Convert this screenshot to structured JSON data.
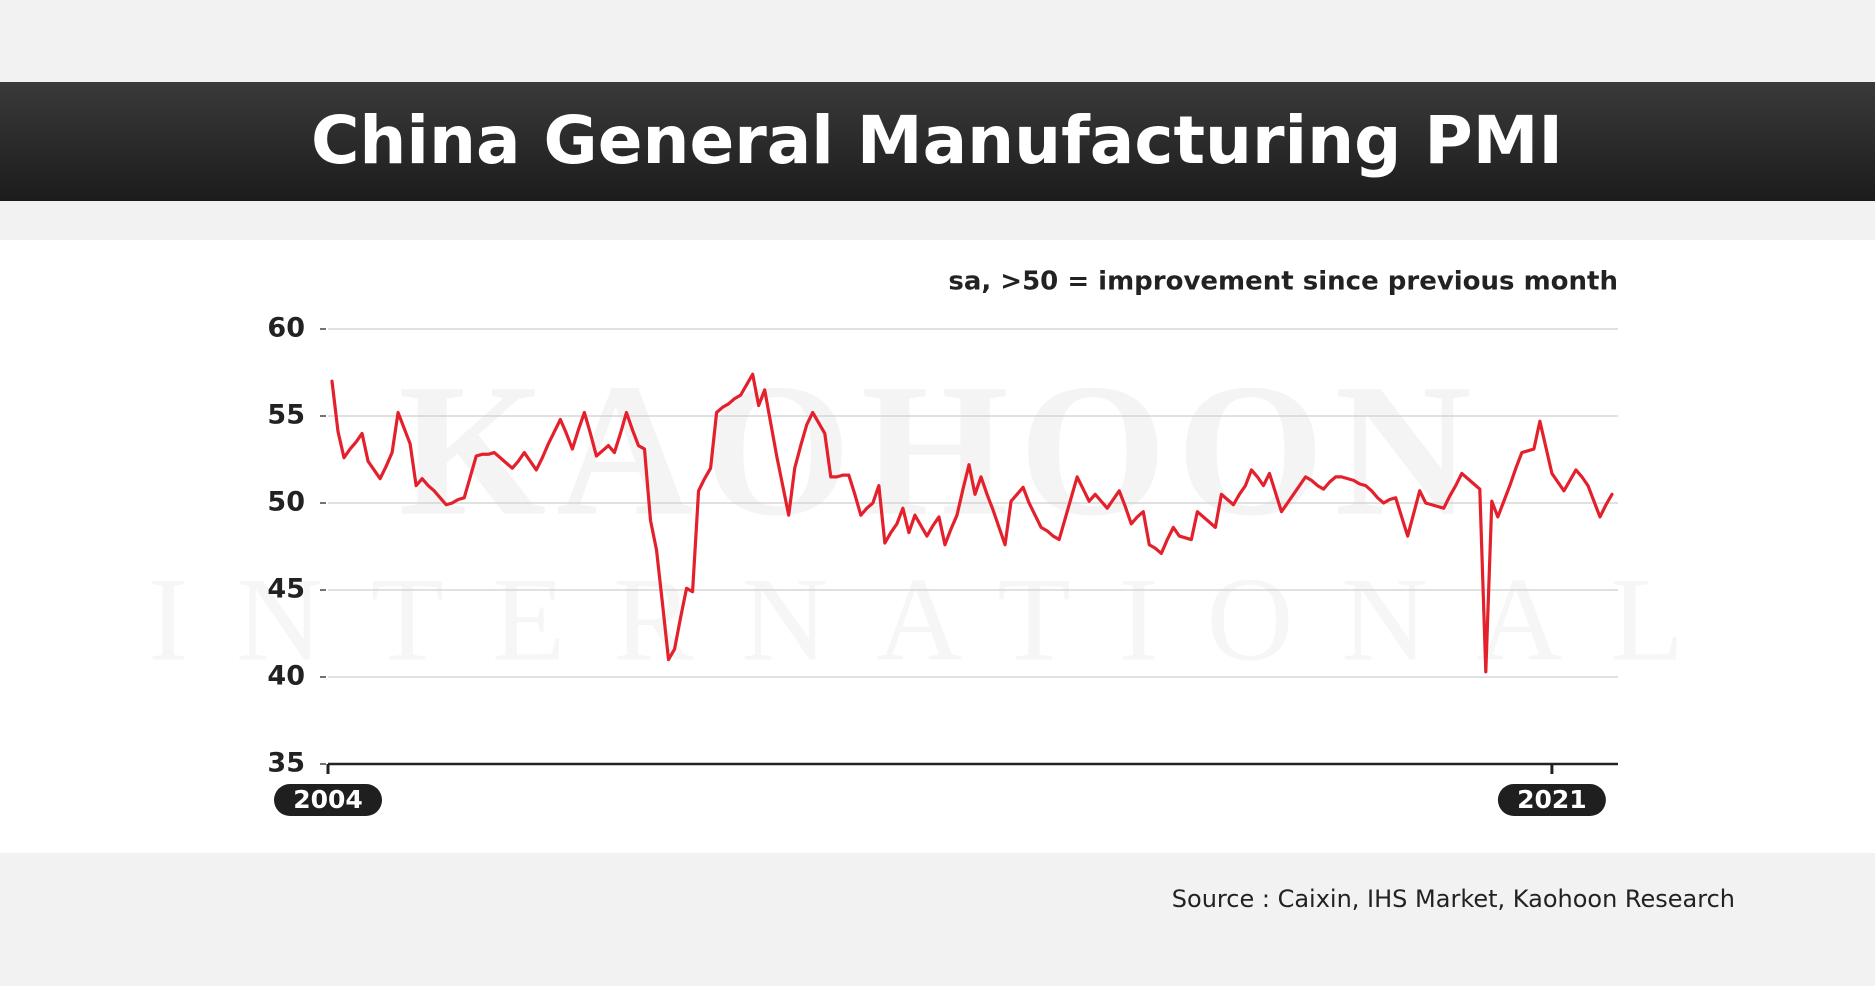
{
  "chart_data": {
    "type": "line",
    "title": "China General Manufacturing PMI",
    "subtitle": "sa, >50 = improvement since previous month",
    "source": "Source : Caixin, IHS Market, Kaohoon Research",
    "watermark": [
      "KAOHOON",
      "INTERNATIONAL"
    ],
    "color": "#e3202b",
    "ylim": [
      35,
      60
    ],
    "yticks": [
      35,
      40,
      45,
      50,
      55,
      60
    ],
    "grid": true,
    "categories": [
      "2004",
      null,
      null,
      null,
      null,
      null,
      null,
      null,
      null,
      null,
      null,
      null,
      null,
      null,
      null,
      null,
      null,
      null,
      null,
      null,
      null,
      null,
      null,
      null,
      null,
      null,
      null,
      null,
      null,
      null,
      null,
      null,
      null,
      null,
      null,
      null,
      null,
      null,
      null,
      null,
      null,
      null,
      null,
      null,
      null,
      null,
      null,
      null,
      null,
      null,
      null,
      null,
      null,
      null,
      null,
      null,
      null,
      null,
      null,
      null,
      null,
      null,
      null,
      null,
      null,
      null,
      null,
      null,
      null,
      null,
      null,
      null,
      null,
      null,
      null,
      null,
      null,
      null,
      null,
      null,
      null,
      null,
      null,
      null,
      null,
      null,
      null,
      null,
      null,
      null,
      null,
      null,
      null,
      null,
      null,
      null,
      null,
      null,
      null,
      null,
      null,
      null,
      null,
      null,
      null,
      null,
      null,
      null,
      null,
      null,
      null,
      null,
      null,
      null,
      null,
      null,
      null,
      null,
      null,
      null,
      null,
      null,
      null,
      null,
      null,
      null,
      null,
      null,
      null,
      null,
      null,
      null,
      null,
      null,
      null,
      null,
      null,
      null,
      null,
      null,
      null,
      null,
      null,
      null,
      null,
      null,
      null,
      null,
      null,
      null,
      null,
      null,
      null,
      null,
      null,
      null,
      null,
      null,
      null,
      null,
      null,
      null,
      null,
      null,
      null,
      null,
      null,
      null,
      null,
      null,
      null,
      null,
      null,
      null,
      null,
      null,
      null,
      null,
      null,
      null,
      null,
      null,
      null,
      null,
      null,
      null,
      null,
      null,
      null,
      null,
      null,
      null,
      null,
      null,
      null,
      null,
      null,
      null,
      null,
      null,
      null,
      null,
      null,
      "2021",
      null,
      null,
      null,
      null,
      null,
      null,
      null,
      null,
      null,
      null
    ],
    "values": [
      57.0,
      54.1,
      52.6,
      53.1,
      53.5,
      54.0,
      52.4,
      51.9,
      51.4,
      52.1,
      52.9,
      55.2,
      54.3,
      53.4,
      51.0,
      51.4,
      51.0,
      50.7,
      50.3,
      49.9,
      50.0,
      50.2,
      50.3,
      51.5,
      52.7,
      52.8,
      52.8,
      52.9,
      52.6,
      52.3,
      52.0,
      52.4,
      52.9,
      52.4,
      51.9,
      52.6,
      53.4,
      54.1,
      54.8,
      54.0,
      53.1,
      54.2,
      55.2,
      54.0,
      52.7,
      53.0,
      53.3,
      52.9,
      54.0,
      55.2,
      54.2,
      53.3,
      53.1,
      49.0,
      47.3,
      44.2,
      41.0,
      41.6,
      43.4,
      45.1,
      44.9,
      50.7,
      51.4,
      52.0,
      55.2,
      55.5,
      55.7,
      56.0,
      56.2,
      56.8,
      57.4,
      55.6,
      56.5,
      54.6,
      52.7,
      51.0,
      49.3,
      52.0,
      53.3,
      54.5,
      55.2,
      54.6,
      54.0,
      51.5,
      51.5,
      51.6,
      51.6,
      50.5,
      49.3,
      49.7,
      50.0,
      51.0,
      47.7,
      48.3,
      48.8,
      49.7,
      48.3,
      49.3,
      48.7,
      48.1,
      48.7,
      49.2,
      47.6,
      48.5,
      49.3,
      50.8,
      52.2,
      50.5,
      51.5,
      50.5,
      49.6,
      48.6,
      47.6,
      50.1,
      50.5,
      50.9,
      50.0,
      49.3,
      48.6,
      48.4,
      48.1,
      47.9,
      49.1,
      50.3,
      51.5,
      50.8,
      50.1,
      50.5,
      50.1,
      49.7,
      50.2,
      50.7,
      49.8,
      48.8,
      49.2,
      49.5,
      47.6,
      47.4,
      47.1,
      47.9,
      48.6,
      48.1,
      48.0,
      47.9,
      49.5,
      49.2,
      48.9,
      48.6,
      50.5,
      50.2,
      49.9,
      50.5,
      51.0,
      51.9,
      51.5,
      51.0,
      51.7,
      50.6,
      49.5,
      50.0,
      50.5,
      51.0,
      51.5,
      51.3,
      51.0,
      50.8,
      51.2,
      51.5,
      51.5,
      51.4,
      51.3,
      51.1,
      51.0,
      50.7,
      50.3,
      50.0,
      50.2,
      50.3,
      49.2,
      48.1,
      49.4,
      50.7,
      50.0,
      49.9,
      49.8,
      49.7,
      50.4,
      51.0,
      51.7,
      51.4,
      51.1,
      50.8,
      40.3,
      50.1,
      49.2,
      50.1,
      51.0,
      52.0,
      52.9,
      53.0,
      53.1,
      54.7,
      53.2,
      51.7,
      51.2,
      50.7,
      51.3,
      51.9,
      51.5,
      51.0,
      50.1,
      49.2,
      49.9,
      50.5
    ]
  }
}
